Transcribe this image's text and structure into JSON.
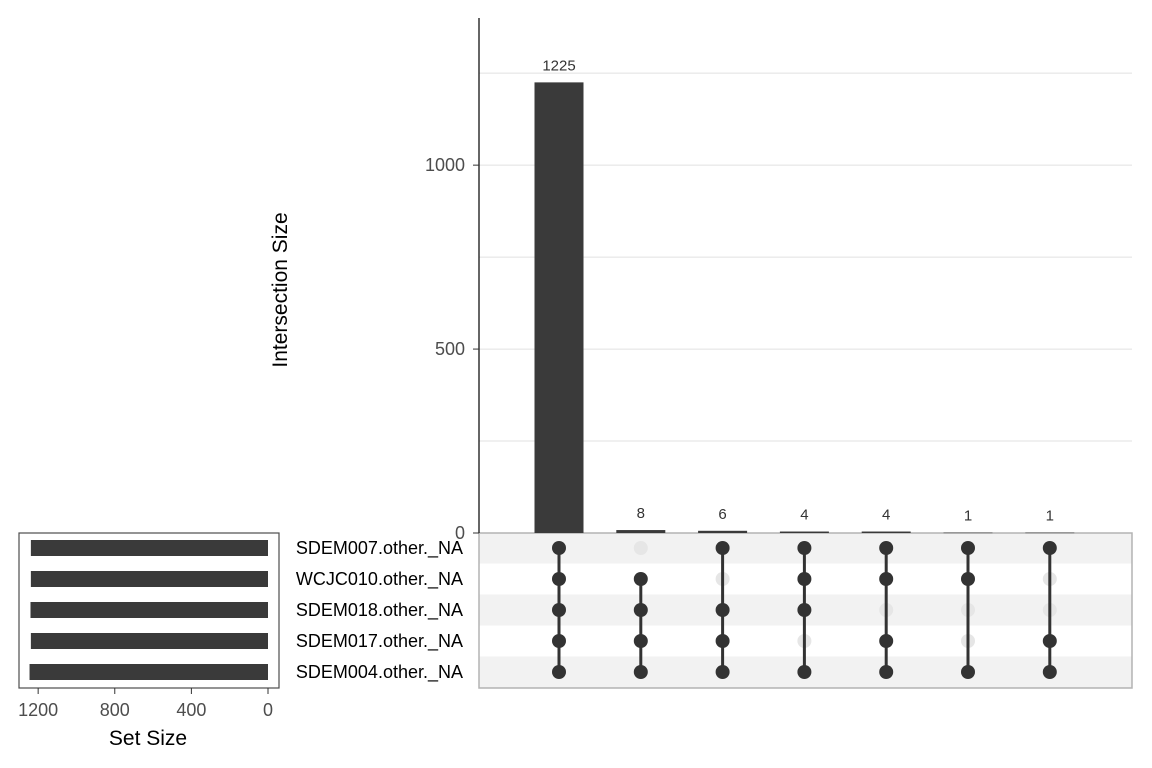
{
  "chart_data": {
    "type": "bar",
    "subtype": "upset",
    "intersection_axis": {
      "label": "Intersection Size",
      "ylim": [
        0,
        1400
      ],
      "ticks": [
        0,
        500,
        1000
      ],
      "gridlines": [
        250,
        500,
        750,
        1000,
        1250
      ]
    },
    "set_size_axis": {
      "label": "Set Size",
      "xlim": [
        1300,
        0
      ],
      "ticks": [
        1200,
        800,
        400,
        0
      ],
      "reversed": true
    },
    "sets": [
      {
        "name": "SDEM007.other._NA",
        "size": 1238
      },
      {
        "name": "WCJC010.other._NA",
        "size": 1238
      },
      {
        "name": "SDEM018.other._NA",
        "size": 1240
      },
      {
        "name": "SDEM017.other._NA",
        "size": 1238
      },
      {
        "name": "SDEM004.other._NA",
        "size": 1245
      }
    ],
    "intersections": [
      {
        "size": 1225,
        "label": "1225",
        "members": [
          0,
          1,
          2,
          3,
          4
        ]
      },
      {
        "size": 8,
        "label": "8",
        "members": [
          1,
          2,
          3,
          4
        ]
      },
      {
        "size": 6,
        "label": "6",
        "members": [
          0,
          2,
          3,
          4
        ]
      },
      {
        "size": 4,
        "label": "4",
        "members": [
          0,
          1,
          2,
          4
        ]
      },
      {
        "size": 4,
        "label": "4",
        "members": [
          0,
          1,
          3,
          4
        ]
      },
      {
        "size": 1,
        "label": "1",
        "members": [
          0,
          1,
          4
        ]
      },
      {
        "size": 1,
        "label": "1",
        "members": [
          0,
          3,
          4
        ]
      }
    ],
    "colors": {
      "bar": "#3a3a3a",
      "dot_active": "#333333",
      "dot_inactive": "#e6e6e6",
      "stripe": "#f2f2f2",
      "grid": "#e0e0e0"
    },
    "grid": true,
    "legend": "none"
  }
}
